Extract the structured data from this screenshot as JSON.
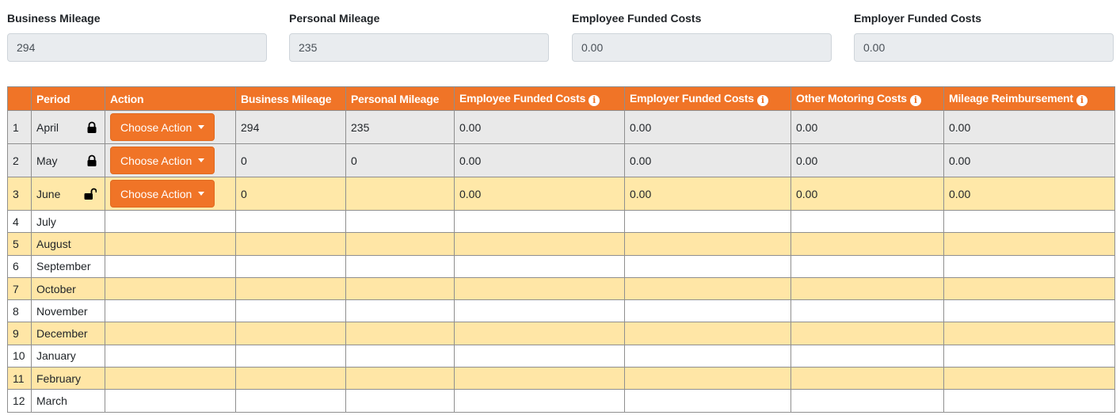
{
  "summary": {
    "business_mileage": {
      "label": "Business Mileage",
      "value": "294"
    },
    "personal_mileage": {
      "label": "Personal Mileage",
      "value": "235"
    },
    "employee_funded_costs": {
      "label": "Employee Funded Costs",
      "value": "0.00"
    },
    "employer_funded_costs": {
      "label": "Employer Funded Costs",
      "value": "0.00"
    }
  },
  "table": {
    "headers": {
      "num": "",
      "period": "Period",
      "action": "Action",
      "business_mileage": "Business Mileage",
      "personal_mileage": "Personal Mileage",
      "employee_funded_costs": "Employee Funded Costs",
      "employer_funded_costs": "Employer Funded Costs",
      "other_motoring_costs": "Other Motoring Costs",
      "mileage_reimbursement": "Mileage Reimbursement"
    },
    "info_icon_glyph": "i",
    "action_button_label": "Choose Action",
    "rows": [
      {
        "num": "1",
        "period": "April",
        "lock": "locked",
        "business": "294",
        "personal": "235",
        "employee": "0.00",
        "employer": "0.00",
        "other": "0.00",
        "reimbursement": "0.00"
      },
      {
        "num": "2",
        "period": "May",
        "lock": "locked",
        "business": "0",
        "personal": "0",
        "employee": "0.00",
        "employer": "0.00",
        "other": "0.00",
        "reimbursement": "0.00"
      },
      {
        "num": "3",
        "period": "June",
        "lock": "unlocked",
        "business": "0",
        "personal": "",
        "employee": "0.00",
        "employer": "0.00",
        "other": "0.00",
        "reimbursement": "0.00"
      },
      {
        "num": "4",
        "period": "July"
      },
      {
        "num": "5",
        "period": "August"
      },
      {
        "num": "6",
        "period": "September"
      },
      {
        "num": "7",
        "period": "October"
      },
      {
        "num": "8",
        "period": "November"
      },
      {
        "num": "9",
        "period": "December"
      },
      {
        "num": "10",
        "period": "January"
      },
      {
        "num": "11",
        "period": "February"
      },
      {
        "num": "12",
        "period": "March"
      }
    ]
  },
  "colors": {
    "accent": "#f07427",
    "locked_row": "#e9e9e9",
    "highlight_row": "#ffe8a8",
    "input_bg": "#e9ecef"
  }
}
